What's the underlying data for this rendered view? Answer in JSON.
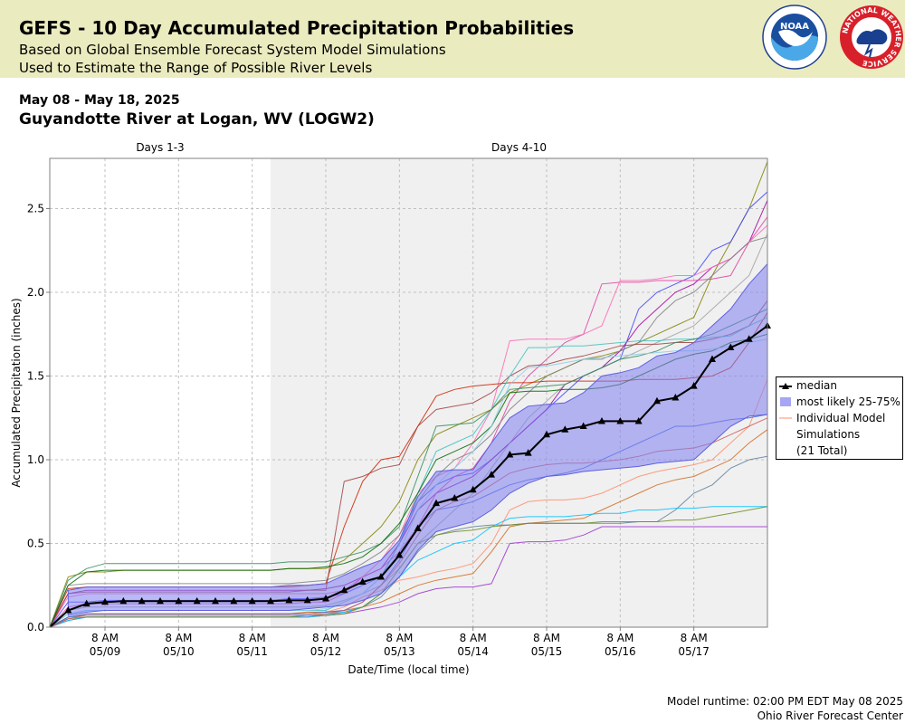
{
  "header": {
    "title": "GEFS - 10 Day Accumulated Precipitation Probabilities",
    "subtitle_1": "Based on Global Ensemble Forecast System Model Simulations",
    "subtitle_2": "Used to Estimate the Range of Possible River Levels",
    "logos": {
      "noaa": "noaa-logo",
      "nws": "nws-logo"
    },
    "noaa_text": "NOAA",
    "nws_ring_text": "NATIONAL WEATHER SERVICE"
  },
  "date_range": "May 08 - May 18, 2025",
  "station": "Guyandotte River at Logan, WV (LOGW2)",
  "footer": {
    "runtime": "Model runtime: 02:00 PM EDT May 08 2025",
    "center": "Ohio River Forecast Center"
  },
  "legend": {
    "median": "median",
    "band": "most likely 25-75%",
    "members_line1": "Individual Model",
    "members_line2": "Simulations",
    "members_line3": "(21 Total)"
  },
  "colors": {
    "header_bg": "#ebebc0",
    "band_fill": "#8080f0",
    "median": "#000000",
    "shaded_region": "#f0f0f0"
  },
  "chart_data": {
    "type": "line",
    "xlabel": "Date/Time (local time)",
    "ylabel": "Accumulated Precipitation (inches)",
    "ylim": [
      0,
      2.8
    ],
    "y_ticks": [
      0.0,
      0.5,
      1.0,
      1.5,
      2.0,
      2.5
    ],
    "y_tick_labels": [
      "0.0",
      "0.5",
      "1.0",
      "1.5",
      "2.0",
      "2.5"
    ],
    "x_start": "2025-05-08 14:00",
    "x_end": "2025-05-18 08:00",
    "x_ticks": [
      "2025-05-09 08:00",
      "2025-05-10 08:00",
      "2025-05-11 08:00",
      "2025-05-12 08:00",
      "2025-05-13 08:00",
      "2025-05-14 08:00",
      "2025-05-15 08:00",
      "2025-05-16 08:00",
      "2025-05-17 08:00"
    ],
    "x_tick_top": "8 AM",
    "x_tick_bottom": [
      "05/09",
      "05/10",
      "05/11",
      "05/12",
      "05/13",
      "05/14",
      "05/15",
      "05/16",
      "05/17"
    ],
    "period_labels": [
      "Days 1-3",
      "Days 4-10"
    ],
    "period_boundary": "2025-05-11 14:00",
    "grid": true,
    "legend_position": "right",
    "median": {
      "name": "median",
      "x": [
        "2025-05-08 14:00",
        "2025-05-08 20:00",
        "2025-05-09 02:00",
        "2025-05-09 08:00",
        "2025-05-09 14:00",
        "2025-05-09 20:00",
        "2025-05-10 02:00",
        "2025-05-10 08:00",
        "2025-05-10 14:00",
        "2025-05-10 20:00",
        "2025-05-11 02:00",
        "2025-05-11 08:00",
        "2025-05-11 14:00",
        "2025-05-11 20:00",
        "2025-05-12 02:00",
        "2025-05-12 08:00",
        "2025-05-12 14:00",
        "2025-05-12 20:00",
        "2025-05-13 02:00",
        "2025-05-13 08:00",
        "2025-05-13 14:00",
        "2025-05-13 20:00",
        "2025-05-14 02:00",
        "2025-05-14 08:00",
        "2025-05-14 14:00",
        "2025-05-14 20:00",
        "2025-05-15 02:00",
        "2025-05-15 08:00",
        "2025-05-15 14:00",
        "2025-05-15 20:00",
        "2025-05-16 02:00",
        "2025-05-16 08:00",
        "2025-05-16 14:00",
        "2025-05-16 20:00",
        "2025-05-17 02:00",
        "2025-05-17 08:00",
        "2025-05-17 14:00",
        "2025-05-17 20:00",
        "2025-05-18 02:00",
        "2025-05-18 08:00"
      ],
      "y": [
        0.0,
        0.1,
        0.14,
        0.15,
        0.155,
        0.155,
        0.155,
        0.155,
        0.155,
        0.155,
        0.155,
        0.155,
        0.155,
        0.16,
        0.16,
        0.17,
        0.22,
        0.27,
        0.3,
        0.43,
        0.59,
        0.74,
        0.77,
        0.82,
        0.91,
        1.03,
        1.04,
        1.15,
        1.18,
        1.2,
        1.23,
        1.23,
        1.23,
        1.35,
        1.37,
        1.44,
        1.6,
        1.67,
        1.72,
        1.8
      ]
    },
    "band_25_75": {
      "name": "most likely 25-75%",
      "lower": [
        null,
        0.07,
        0.09,
        0.1,
        0.1,
        0.1,
        0.1,
        0.1,
        0.1,
        0.1,
        0.1,
        0.1,
        0.1,
        0.1,
        0.11,
        0.12,
        0.13,
        0.16,
        0.2,
        0.3,
        0.46,
        0.57,
        0.6,
        0.63,
        0.7,
        0.8,
        0.86,
        0.9,
        0.91,
        0.93,
        0.94,
        0.95,
        0.96,
        0.98,
        0.99,
        1.0,
        1.1,
        1.2,
        1.26,
        1.27
      ],
      "upper": [
        null,
        0.22,
        0.24,
        0.24,
        0.24,
        0.24,
        0.24,
        0.24,
        0.24,
        0.24,
        0.24,
        0.24,
        0.24,
        0.25,
        0.25,
        0.26,
        0.31,
        0.36,
        0.4,
        0.52,
        0.78,
        0.93,
        0.94,
        0.94,
        1.1,
        1.25,
        1.32,
        1.33,
        1.34,
        1.4,
        1.5,
        1.52,
        1.55,
        1.62,
        1.64,
        1.7,
        1.8,
        1.9,
        2.05,
        2.17
      ]
    },
    "members_count": 21,
    "members": [
      {
        "color": "#808000",
        "y": [
          0.0,
          0.3,
          0.33,
          0.33,
          0.34,
          0.34,
          0.34,
          0.34,
          0.34,
          0.34,
          0.34,
          0.34,
          0.34,
          0.35,
          0.35,
          0.35,
          0.4,
          0.5,
          0.6,
          0.75,
          1.0,
          1.15,
          1.2,
          1.25,
          1.3,
          1.4,
          1.45,
          1.5,
          1.55,
          1.6,
          1.62,
          1.65,
          1.7,
          1.75,
          1.8,
          1.85,
          2.1,
          2.3,
          2.5,
          2.78
        ]
      },
      {
        "color": "#4040ff",
        "y": [
          0.0,
          0.15,
          0.15,
          0.16,
          0.16,
          0.16,
          0.16,
          0.16,
          0.16,
          0.16,
          0.16,
          0.16,
          0.16,
          0.17,
          0.17,
          0.18,
          0.2,
          0.25,
          0.3,
          0.5,
          0.75,
          0.85,
          0.9,
          0.92,
          1.0,
          1.1,
          1.2,
          1.3,
          1.4,
          1.5,
          1.55,
          1.6,
          1.9,
          2.0,
          2.05,
          2.1,
          2.25,
          2.3,
          2.5,
          2.6
        ]
      },
      {
        "color": "#a000a0",
        "y": [
          0.0,
          0.2,
          0.22,
          0.22,
          0.22,
          0.22,
          0.22,
          0.22,
          0.22,
          0.22,
          0.22,
          0.22,
          0.22,
          0.22,
          0.22,
          0.23,
          0.25,
          0.3,
          0.35,
          0.5,
          0.7,
          0.8,
          0.85,
          0.9,
          1.0,
          1.1,
          1.2,
          1.3,
          1.45,
          1.5,
          1.55,
          1.65,
          1.8,
          1.9,
          2.0,
          2.05,
          2.15,
          2.2,
          2.3,
          2.55
        ]
      },
      {
        "color": "#e040a0",
        "y": [
          0.0,
          0.12,
          0.14,
          0.14,
          0.14,
          0.14,
          0.14,
          0.14,
          0.14,
          0.14,
          0.14,
          0.14,
          0.14,
          0.14,
          0.15,
          0.15,
          0.2,
          0.3,
          0.35,
          0.45,
          0.6,
          0.8,
          0.9,
          0.95,
          1.1,
          1.35,
          1.5,
          1.6,
          1.7,
          1.75,
          2.05,
          2.06,
          2.06,
          2.07,
          2.07,
          2.07,
          2.08,
          2.1,
          2.3,
          2.45
        ]
      },
      {
        "color": "#ff69b4",
        "y": [
          0.0,
          0.18,
          0.2,
          0.2,
          0.2,
          0.2,
          0.2,
          0.2,
          0.2,
          0.2,
          0.2,
          0.2,
          0.2,
          0.2,
          0.2,
          0.2,
          0.22,
          0.3,
          0.4,
          0.55,
          0.8,
          0.9,
          0.95,
          1.1,
          1.3,
          1.71,
          1.72,
          1.72,
          1.72,
          1.75,
          1.8,
          2.07,
          2.07,
          2.08,
          2.1,
          2.1,
          2.15,
          2.2,
          2.3,
          2.4
        ]
      },
      {
        "color": "#808080",
        "y": [
          0.0,
          0.25,
          0.26,
          0.26,
          0.26,
          0.26,
          0.26,
          0.26,
          0.26,
          0.26,
          0.26,
          0.26,
          0.26,
          0.26,
          0.27,
          0.28,
          0.32,
          0.38,
          0.45,
          0.55,
          0.75,
          0.9,
          1.0,
          1.05,
          1.15,
          1.3,
          1.4,
          1.5,
          1.55,
          1.6,
          1.6,
          1.65,
          1.7,
          1.85,
          1.95,
          2.0,
          2.1,
          2.2,
          2.3,
          2.33
        ]
      },
      {
        "color": "#a0a0a0",
        "y": [
          0.0,
          0.1,
          0.12,
          0.12,
          0.12,
          0.12,
          0.12,
          0.12,
          0.12,
          0.12,
          0.12,
          0.12,
          0.12,
          0.12,
          0.12,
          0.13,
          0.16,
          0.2,
          0.25,
          0.35,
          0.5,
          0.6,
          0.7,
          0.8,
          0.95,
          1.1,
          1.25,
          1.35,
          1.45,
          1.5,
          1.55,
          1.6,
          1.65,
          1.7,
          1.75,
          1.8,
          1.9,
          2.0,
          2.1,
          2.35
        ]
      },
      {
        "color": "#cc2200",
        "y": [
          0.0,
          0.23,
          0.24,
          0.24,
          0.24,
          0.24,
          0.24,
          0.24,
          0.24,
          0.24,
          0.24,
          0.24,
          0.24,
          0.24,
          0.25,
          0.26,
          0.6,
          0.87,
          1.0,
          1.02,
          1.2,
          1.38,
          1.42,
          1.44,
          1.45,
          1.46,
          1.46,
          1.47,
          1.47,
          1.47,
          1.47,
          1.47,
          1.48,
          1.48,
          1.48,
          1.49,
          1.5,
          1.55,
          1.7,
          1.88
        ]
      },
      {
        "color": "#a04040",
        "y": [
          0.0,
          0.2,
          0.21,
          0.21,
          0.21,
          0.21,
          0.21,
          0.21,
          0.21,
          0.21,
          0.21,
          0.21,
          0.21,
          0.21,
          0.22,
          0.22,
          0.87,
          0.9,
          0.95,
          0.97,
          1.2,
          1.3,
          1.32,
          1.34,
          1.4,
          1.5,
          1.56,
          1.57,
          1.6,
          1.62,
          1.65,
          1.68,
          1.69,
          1.69,
          1.7,
          1.7,
          1.72,
          1.75,
          1.8,
          1.95
        ]
      },
      {
        "color": "#40c0c0",
        "y": [
          0.0,
          0.08,
          0.1,
          0.1,
          0.1,
          0.1,
          0.1,
          0.1,
          0.1,
          0.1,
          0.1,
          0.1,
          0.1,
          0.1,
          0.1,
          0.1,
          0.15,
          0.2,
          0.3,
          0.5,
          0.8,
          1.05,
          1.1,
          1.15,
          1.3,
          1.5,
          1.67,
          1.67,
          1.68,
          1.68,
          1.69,
          1.7,
          1.71,
          1.71,
          1.72,
          1.72,
          1.73,
          1.74,
          1.8,
          1.85
        ]
      },
      {
        "color": "#2e8b57",
        "y": [
          0.0,
          0.28,
          0.35,
          0.38,
          0.38,
          0.38,
          0.38,
          0.38,
          0.38,
          0.38,
          0.38,
          0.38,
          0.38,
          0.39,
          0.39,
          0.39,
          0.42,
          0.45,
          0.5,
          0.6,
          0.9,
          1.2,
          1.21,
          1.22,
          1.3,
          1.42,
          1.43,
          1.44,
          1.45,
          1.5,
          1.55,
          1.6,
          1.62,
          1.65,
          1.7,
          1.72,
          1.75,
          1.8,
          1.85,
          1.9
        ]
      },
      {
        "color": "#006400",
        "y": [
          0.0,
          0.25,
          0.33,
          0.34,
          0.34,
          0.34,
          0.34,
          0.34,
          0.34,
          0.34,
          0.34,
          0.34,
          0.34,
          0.35,
          0.35,
          0.36,
          0.38,
          0.42,
          0.5,
          0.62,
          0.8,
          1.0,
          1.05,
          1.1,
          1.2,
          1.4,
          1.41,
          1.41,
          1.42,
          1.42,
          1.43,
          1.45,
          1.5,
          1.55,
          1.6,
          1.63,
          1.65,
          1.7,
          1.72,
          1.75
        ]
      },
      {
        "color": "#87ceeb",
        "y": [
          0.0,
          0.08,
          0.1,
          0.1,
          0.1,
          0.1,
          0.1,
          0.1,
          0.1,
          0.1,
          0.1,
          0.1,
          0.1,
          0.1,
          0.1,
          0.11,
          0.15,
          0.2,
          0.3,
          0.45,
          0.7,
          0.85,
          0.95,
          1.05,
          1.2,
          1.45,
          1.55,
          1.56,
          1.58,
          1.6,
          1.61,
          1.62,
          1.63,
          1.64,
          1.65,
          1.65,
          1.66,
          1.68,
          1.7,
          1.72
        ]
      },
      {
        "color": "#ff8c69",
        "y": [
          0.0,
          0.05,
          0.08,
          0.08,
          0.08,
          0.08,
          0.08,
          0.08,
          0.08,
          0.08,
          0.08,
          0.08,
          0.08,
          0.08,
          0.09,
          0.09,
          0.12,
          0.18,
          0.22,
          0.28,
          0.3,
          0.33,
          0.35,
          0.38,
          0.5,
          0.7,
          0.75,
          0.76,
          0.76,
          0.77,
          0.8,
          0.85,
          0.9,
          0.93,
          0.95,
          0.97,
          1.0,
          1.1,
          1.2,
          1.48
        ]
      },
      {
        "color": "#d2691e",
        "y": [
          0.0,
          0.06,
          0.08,
          0.08,
          0.08,
          0.08,
          0.08,
          0.08,
          0.08,
          0.08,
          0.08,
          0.08,
          0.08,
          0.08,
          0.09,
          0.09,
          0.1,
          0.12,
          0.15,
          0.2,
          0.25,
          0.28,
          0.3,
          0.32,
          0.45,
          0.6,
          0.62,
          0.63,
          0.64,
          0.65,
          0.7,
          0.75,
          0.8,
          0.85,
          0.88,
          0.9,
          0.95,
          1.0,
          1.1,
          1.18
        ]
      },
      {
        "color": "#5f7f9f",
        "y": [
          0.0,
          0.06,
          0.07,
          0.07,
          0.07,
          0.07,
          0.07,
          0.07,
          0.07,
          0.07,
          0.07,
          0.07,
          0.07,
          0.07,
          0.07,
          0.08,
          0.09,
          0.12,
          0.18,
          0.3,
          0.45,
          0.55,
          0.58,
          0.6,
          0.61,
          0.61,
          0.62,
          0.62,
          0.62,
          0.62,
          0.62,
          0.62,
          0.63,
          0.63,
          0.7,
          0.8,
          0.85,
          0.95,
          1.0,
          1.02
        ]
      },
      {
        "color": "#9932cc",
        "y": [
          0.0,
          0.04,
          0.06,
          0.06,
          0.06,
          0.06,
          0.06,
          0.06,
          0.06,
          0.06,
          0.06,
          0.06,
          0.06,
          0.06,
          0.06,
          0.07,
          0.08,
          0.1,
          0.12,
          0.15,
          0.2,
          0.23,
          0.24,
          0.24,
          0.26,
          0.5,
          0.51,
          0.51,
          0.52,
          0.55,
          0.6,
          0.6,
          0.6,
          0.6,
          0.6,
          0.6,
          0.6,
          0.6,
          0.6,
          0.6
        ]
      },
      {
        "color": "#00bfff",
        "y": [
          0.0,
          0.04,
          0.06,
          0.06,
          0.06,
          0.06,
          0.06,
          0.06,
          0.06,
          0.06,
          0.06,
          0.06,
          0.06,
          0.06,
          0.06,
          0.07,
          0.09,
          0.12,
          0.2,
          0.3,
          0.4,
          0.45,
          0.5,
          0.52,
          0.6,
          0.65,
          0.66,
          0.66,
          0.66,
          0.67,
          0.68,
          0.68,
          0.7,
          0.7,
          0.71,
          0.71,
          0.72,
          0.72,
          0.72,
          0.72
        ]
      },
      {
        "color": "#6b8e23",
        "y": [
          0.0,
          0.05,
          0.06,
          0.06,
          0.06,
          0.06,
          0.06,
          0.06,
          0.06,
          0.06,
          0.06,
          0.06,
          0.06,
          0.06,
          0.07,
          0.07,
          0.08,
          0.12,
          0.2,
          0.35,
          0.5,
          0.55,
          0.57,
          0.58,
          0.6,
          0.61,
          0.62,
          0.62,
          0.62,
          0.62,
          0.63,
          0.63,
          0.63,
          0.63,
          0.64,
          0.64,
          0.66,
          0.68,
          0.7,
          0.72
        ]
      },
      {
        "color": "#4169e1",
        "y": [
          0.0,
          0.06,
          0.08,
          0.08,
          0.08,
          0.08,
          0.08,
          0.08,
          0.08,
          0.08,
          0.08,
          0.08,
          0.08,
          0.08,
          0.08,
          0.09,
          0.1,
          0.15,
          0.25,
          0.4,
          0.6,
          0.7,
          0.72,
          0.75,
          0.8,
          0.85,
          0.88,
          0.9,
          0.92,
          0.95,
          1.0,
          1.05,
          1.1,
          1.15,
          1.2,
          1.2,
          1.22,
          1.24,
          1.25,
          1.27
        ]
      },
      {
        "color": "#cd5c5c",
        "y": [
          0.0,
          0.05,
          0.07,
          0.07,
          0.07,
          0.07,
          0.07,
          0.07,
          0.07,
          0.07,
          0.07,
          0.07,
          0.07,
          0.07,
          0.07,
          0.08,
          0.1,
          0.15,
          0.25,
          0.38,
          0.55,
          0.7,
          0.75,
          0.78,
          0.85,
          0.92,
          0.95,
          0.97,
          0.98,
          0.98,
          0.99,
          1.0,
          1.02,
          1.05,
          1.06,
          1.07,
          1.1,
          1.15,
          1.2,
          1.25
        ]
      }
    ]
  }
}
